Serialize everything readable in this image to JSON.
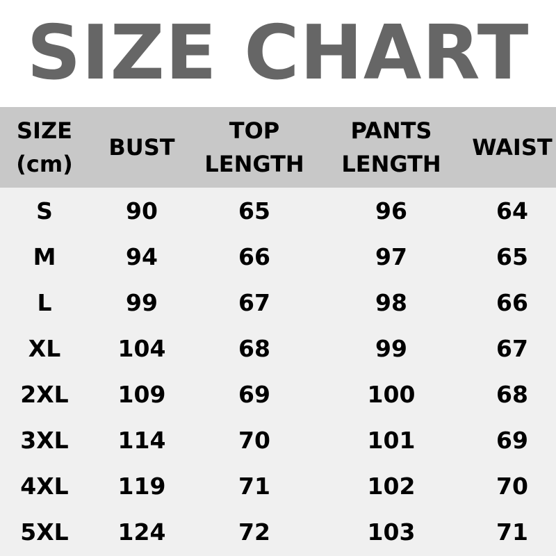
{
  "title": "SIZE CHART",
  "colors": {
    "title": "#666666",
    "header_bg": "#c8c8c8",
    "body_bg": "#f0f0f0"
  },
  "table": {
    "headers": [
      [
        "SIZE",
        "(cm)"
      ],
      [
        "BUST"
      ],
      [
        "TOP",
        "LENGTH"
      ],
      [
        "PANTS",
        "LENGTH"
      ],
      [
        "WAIST"
      ]
    ],
    "rows": [
      [
        "S",
        "90",
        "65",
        "96",
        "64"
      ],
      [
        "M",
        "94",
        "66",
        "97",
        "65"
      ],
      [
        "L",
        "99",
        "67",
        "98",
        "66"
      ],
      [
        "XL",
        "104",
        "68",
        "99",
        "67"
      ],
      [
        "2XL",
        "109",
        "69",
        "100",
        "68"
      ],
      [
        "3XL",
        "114",
        "70",
        "101",
        "69"
      ],
      [
        "4XL",
        "119",
        "71",
        "102",
        "70"
      ],
      [
        "5XL",
        "124",
        "72",
        "103",
        "71"
      ]
    ]
  }
}
